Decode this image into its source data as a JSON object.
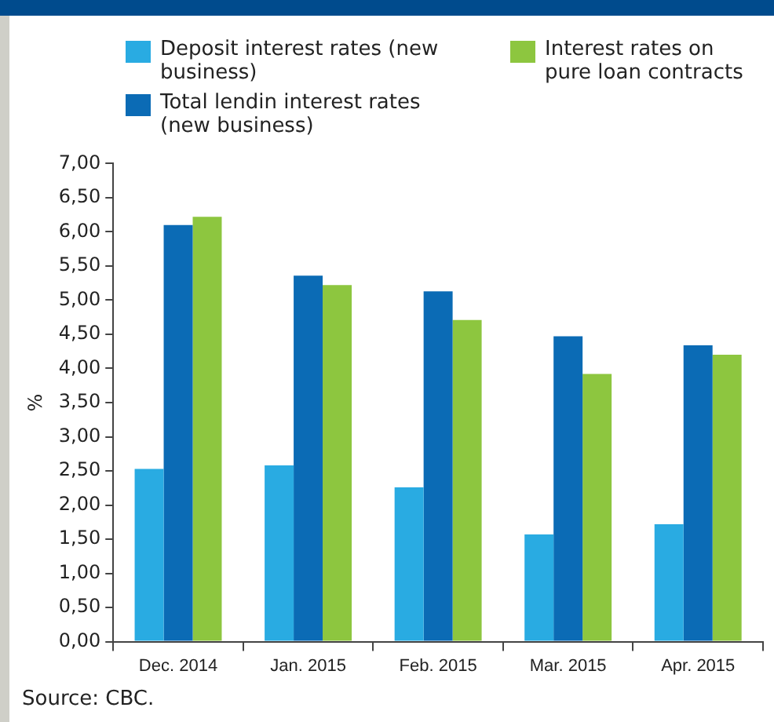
{
  "chart_data": {
    "type": "bar",
    "ylabel": "%",
    "categories": [
      "Dec. 2014",
      "Jan. 2015",
      "Feb. 2015",
      "Mar. 2015",
      "Apr. 2015"
    ],
    "series": [
      {
        "name": "Deposit interest rates (new business)",
        "color": "#29abe2",
        "values": [
          2.53,
          2.58,
          2.26,
          1.57,
          1.72
        ]
      },
      {
        "name": "Total lendin interest rates (new business)",
        "color": "#0b6bb5",
        "values": [
          6.1,
          5.36,
          5.13,
          4.47,
          4.34
        ]
      },
      {
        "name": "Interest rates on pure loan contracts",
        "color": "#8dc63f",
        "values": [
          6.22,
          5.22,
          4.71,
          3.92,
          4.2
        ]
      }
    ],
    "ylim": [
      0,
      7
    ],
    "yticks": [
      {
        "value": 0,
        "label": "0,00"
      },
      {
        "value": 0.5,
        "label": "0,50"
      },
      {
        "value": 1,
        "label": "1,00"
      },
      {
        "value": 1.5,
        "label": "1,50"
      },
      {
        "value": 2,
        "label": "2,00"
      },
      {
        "value": 2.5,
        "label": "2,50"
      },
      {
        "value": 3,
        "label": "3,00"
      },
      {
        "value": 3.5,
        "label": "3,50"
      },
      {
        "value": 4,
        "label": "4,00"
      },
      {
        "value": 4.5,
        "label": "4,50"
      },
      {
        "value": 5,
        "label": "5,00"
      },
      {
        "value": 5.5,
        "label": "5,50"
      },
      {
        "value": 6,
        "label": "6,00"
      },
      {
        "value": 6.5,
        "label": "6,50"
      },
      {
        "value": 7,
        "label": "7,00"
      }
    ],
    "grid": false,
    "legend": "top",
    "annotations": [
      "Source: CBC."
    ]
  }
}
